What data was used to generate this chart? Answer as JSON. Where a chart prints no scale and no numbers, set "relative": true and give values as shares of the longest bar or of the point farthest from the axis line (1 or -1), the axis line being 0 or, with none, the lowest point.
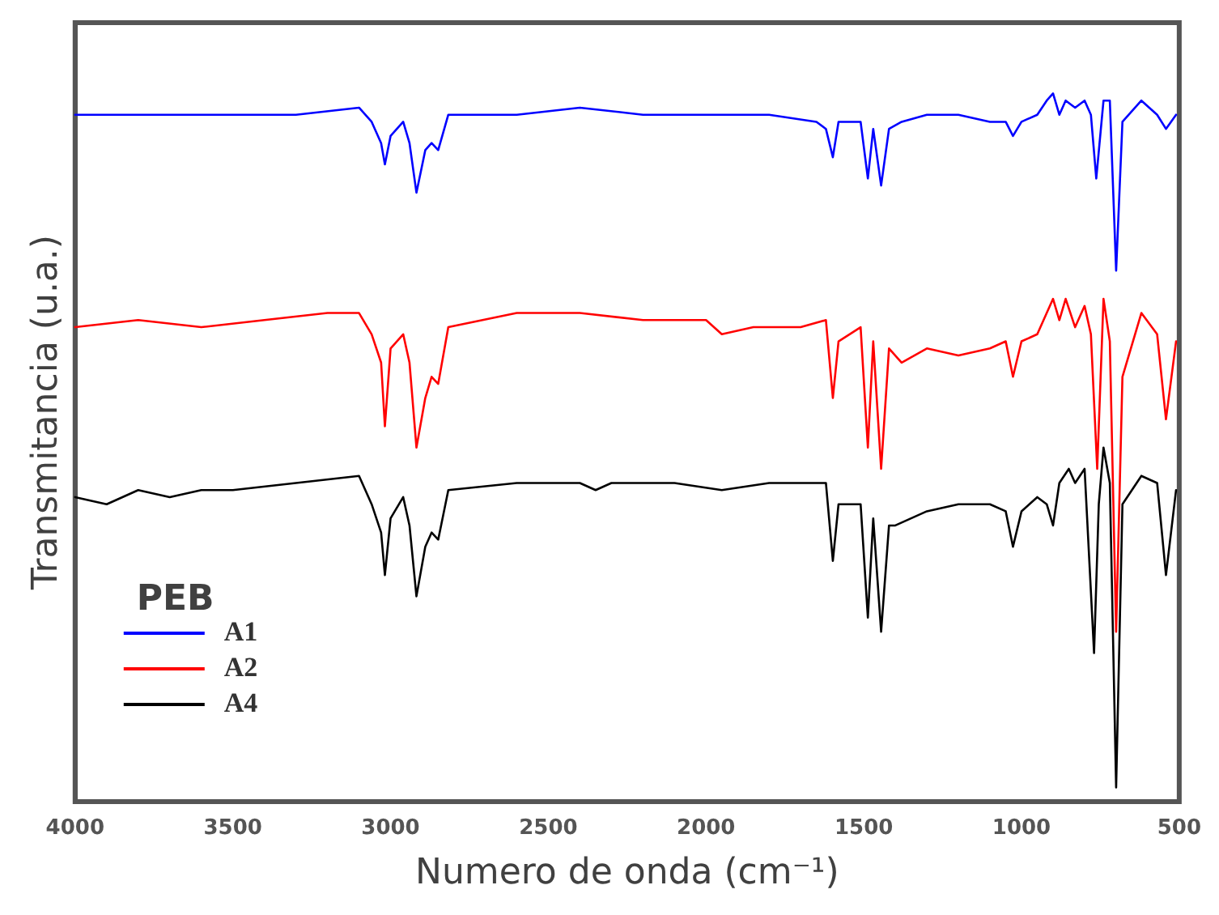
{
  "chart_data": {
    "type": "line",
    "relative": true,
    "xlabel": "Numero de onda (cm⁻¹)",
    "ylabel": "Transmitancia (u.a.)",
    "legend_title": "PEB",
    "legend": "bottom left",
    "grid": false,
    "marker": "none",
    "line_style": "solid",
    "xlim": [
      4000,
      500
    ],
    "xticks": [
      4000,
      3500,
      3000,
      2500,
      2000,
      1500,
      1000,
      500
    ],
    "series": [
      {
        "name": "A1",
        "color": "#0000ff",
        "x": [
          4000,
          3800,
          3600,
          3500,
          3300,
          3100,
          3060,
          3030,
          3018,
          3000,
          2960,
          2940,
          2918,
          2890,
          2870,
          2849,
          2817,
          2600,
          2400,
          2200,
          2000,
          1800,
          1650,
          1620,
          1598,
          1580,
          1510,
          1487,
          1470,
          1445,
          1420,
          1380,
          1300,
          1200,
          1100,
          1050,
          1027,
          1000,
          950,
          920,
          900,
          880,
          860,
          830,
          800,
          780,
          763,
          740,
          720,
          700,
          680,
          620,
          570,
          542,
          510
        ],
        "values": [
          0.97,
          0.97,
          0.97,
          0.97,
          0.97,
          0.98,
          0.96,
          0.93,
          0.9,
          0.94,
          0.96,
          0.93,
          0.86,
          0.92,
          0.93,
          0.92,
          0.97,
          0.97,
          0.98,
          0.97,
          0.97,
          0.97,
          0.96,
          0.95,
          0.91,
          0.96,
          0.96,
          0.88,
          0.95,
          0.87,
          0.95,
          0.96,
          0.97,
          0.97,
          0.96,
          0.96,
          0.94,
          0.96,
          0.97,
          0.99,
          1.0,
          0.97,
          0.99,
          0.98,
          0.99,
          0.97,
          0.88,
          0.99,
          0.99,
          0.75,
          0.96,
          0.99,
          0.97,
          0.95,
          0.97
        ]
      },
      {
        "name": "A2",
        "color": "#ff0000",
        "x": [
          4000,
          3800,
          3600,
          3400,
          3200,
          3100,
          3060,
          3030,
          3018,
          3000,
          2960,
          2940,
          2918,
          2890,
          2870,
          2849,
          2817,
          2600,
          2400,
          2200,
          2000,
          1950,
          1850,
          1700,
          1620,
          1598,
          1580,
          1510,
          1487,
          1470,
          1445,
          1420,
          1380,
          1300,
          1200,
          1100,
          1050,
          1027,
          1000,
          950,
          900,
          880,
          860,
          830,
          800,
          780,
          760,
          740,
          720,
          700,
          680,
          620,
          570,
          542,
          510
        ],
        "values": [
          0.67,
          0.68,
          0.67,
          0.68,
          0.69,
          0.69,
          0.66,
          0.62,
          0.53,
          0.64,
          0.66,
          0.62,
          0.5,
          0.57,
          0.6,
          0.59,
          0.67,
          0.69,
          0.69,
          0.68,
          0.68,
          0.66,
          0.67,
          0.67,
          0.68,
          0.57,
          0.65,
          0.67,
          0.5,
          0.65,
          0.47,
          0.64,
          0.62,
          0.64,
          0.63,
          0.64,
          0.65,
          0.6,
          0.65,
          0.66,
          0.71,
          0.68,
          0.71,
          0.67,
          0.7,
          0.66,
          0.47,
          0.71,
          0.65,
          0.24,
          0.6,
          0.69,
          0.66,
          0.54,
          0.65
        ]
      },
      {
        "name": "A4",
        "color": "#000000",
        "x": [
          4000,
          3900,
          3800,
          3700,
          3600,
          3500,
          3300,
          3100,
          3060,
          3030,
          3018,
          3000,
          2960,
          2940,
          2918,
          2890,
          2870,
          2849,
          2817,
          2600,
          2400,
          2350,
          2300,
          2100,
          1950,
          1800,
          1650,
          1620,
          1598,
          1580,
          1510,
          1487,
          1470,
          1445,
          1420,
          1400,
          1300,
          1200,
          1150,
          1100,
          1050,
          1027,
          1000,
          950,
          920,
          900,
          880,
          850,
          830,
          800,
          770,
          755,
          740,
          720,
          700,
          680,
          620,
          570,
          542,
          510
        ],
        "values": [
          0.43,
          0.42,
          0.44,
          0.43,
          0.44,
          0.44,
          0.45,
          0.46,
          0.42,
          0.38,
          0.32,
          0.4,
          0.43,
          0.39,
          0.29,
          0.36,
          0.38,
          0.37,
          0.44,
          0.45,
          0.45,
          0.44,
          0.45,
          0.45,
          0.44,
          0.45,
          0.45,
          0.45,
          0.34,
          0.42,
          0.42,
          0.26,
          0.4,
          0.24,
          0.39,
          0.39,
          0.41,
          0.42,
          0.42,
          0.42,
          0.41,
          0.36,
          0.41,
          0.43,
          0.42,
          0.39,
          0.45,
          0.47,
          0.45,
          0.47,
          0.21,
          0.42,
          0.5,
          0.45,
          0.02,
          0.42,
          0.46,
          0.45,
          0.32,
          0.44
        ]
      }
    ]
  }
}
